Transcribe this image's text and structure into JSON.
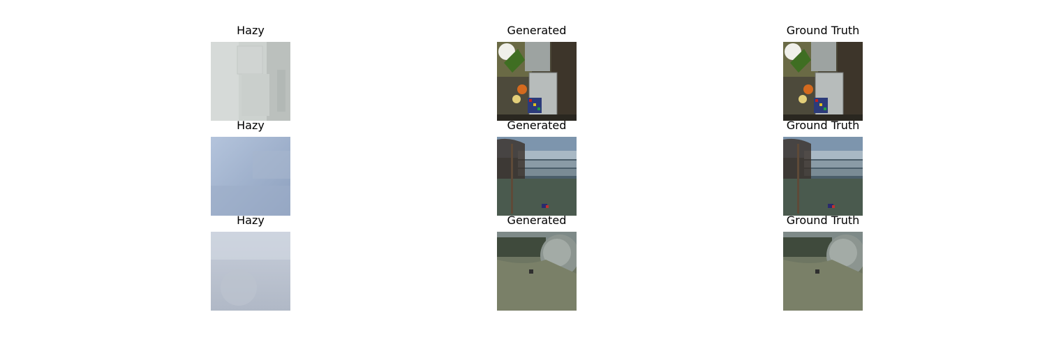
{
  "rows": [
    {
      "panels": [
        {
          "title": "Hazy",
          "scene": "kitchen-hazy"
        },
        {
          "title": "Generated",
          "scene": "kitchen-clear"
        },
        {
          "title": "Ground Truth",
          "scene": "kitchen-clear"
        }
      ]
    },
    {
      "panels": [
        {
          "title": "Hazy",
          "scene": "garden-tree-hazy"
        },
        {
          "title": "Generated",
          "scene": "garden-tree-clear"
        },
        {
          "title": "Ground Truth",
          "scene": "garden-tree-clear"
        }
      ]
    },
    {
      "panels": [
        {
          "title": "Hazy",
          "scene": "lawn-bush-hazy"
        },
        {
          "title": "Generated",
          "scene": "lawn-bush-clear"
        },
        {
          "title": "Ground Truth",
          "scene": "lawn-bush-clear"
        }
      ]
    }
  ]
}
